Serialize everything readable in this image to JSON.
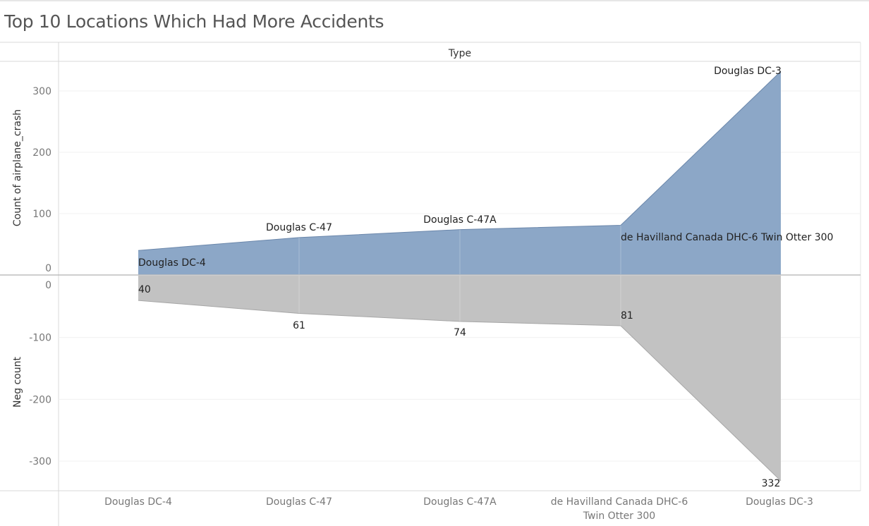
{
  "title": "Top 10 Locations Which Had More Accidents",
  "chart_data": {
    "type": "area",
    "header": "Type",
    "categories": [
      "Douglas DC-4",
      "Douglas C-47",
      "Douglas C-47A",
      "de Havilland Canada DHC-6 Twin Otter 300",
      "Douglas DC-3"
    ],
    "category_tick_lines": [
      [
        "Douglas DC-4"
      ],
      [
        "Douglas C-47"
      ],
      [
        "Douglas C-47A"
      ],
      [
        "de Havilland Canada DHC-6",
        "Twin Otter 300"
      ],
      [
        "Douglas DC-3"
      ]
    ],
    "series": [
      {
        "name": "Count of airplane_crash",
        "values": [
          40,
          61,
          74,
          81,
          332
        ],
        "color": "#8ca7c7",
        "stroke": "#6b87ab"
      },
      {
        "name": "Neg count",
        "values": [
          -40,
          -61,
          -74,
          -81,
          -332
        ],
        "color": "#c2c2c2",
        "stroke": "#a6a6a6"
      }
    ],
    "value_labels": [
      "40",
      "61",
      "74",
      "81",
      "332"
    ],
    "top_axis": {
      "label": "Count of airplane_crash",
      "ylim": [
        0,
        350
      ],
      "ticks": [
        0,
        100,
        200,
        300
      ]
    },
    "bottom_axis": {
      "label": "Neg count",
      "ylim": [
        -350,
        0
      ],
      "ticks": [
        0,
        -100,
        -200,
        -300
      ]
    },
    "grid": true
  }
}
